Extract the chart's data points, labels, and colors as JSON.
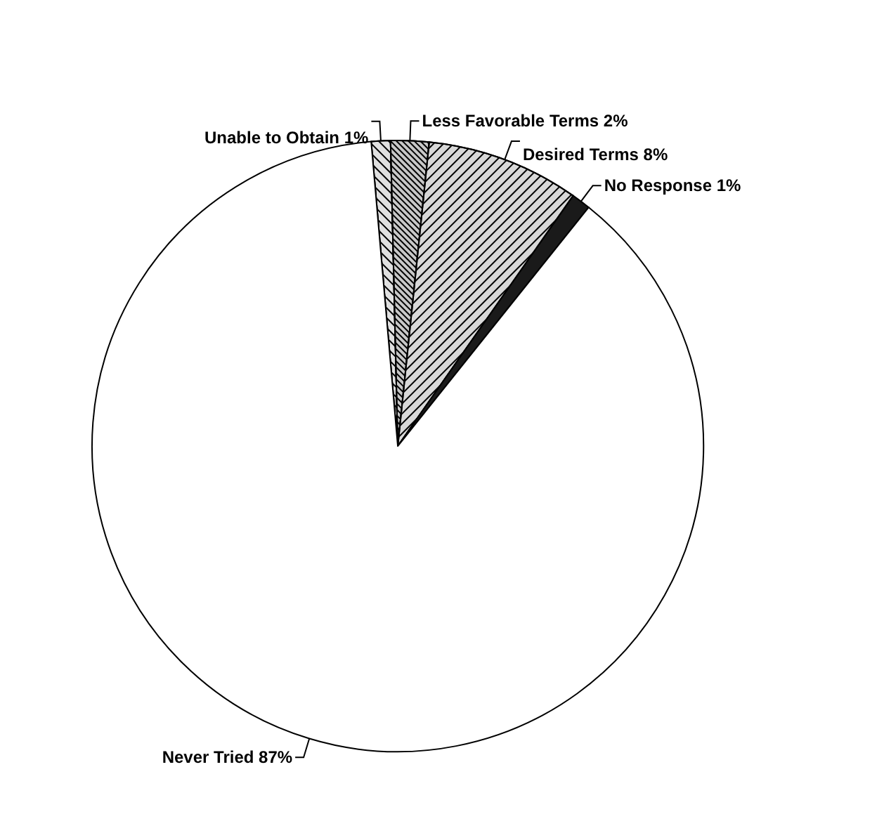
{
  "chart_data": {
    "type": "pie",
    "categories": [
      "Unable to Obtain",
      "Less Favorable Terms",
      "Desired Terms",
      "No Response",
      "Never Tried"
    ],
    "values": [
      1,
      2,
      8,
      1,
      87
    ],
    "value_labels": [
      "1%",
      "2%",
      "8%",
      "1%",
      "87%"
    ],
    "colors": [
      "#e0e0e0",
      "#c8c8c8",
      "#d8d8d8",
      "#1a1a1a",
      "#ffffff"
    ],
    "legend": false
  }
}
